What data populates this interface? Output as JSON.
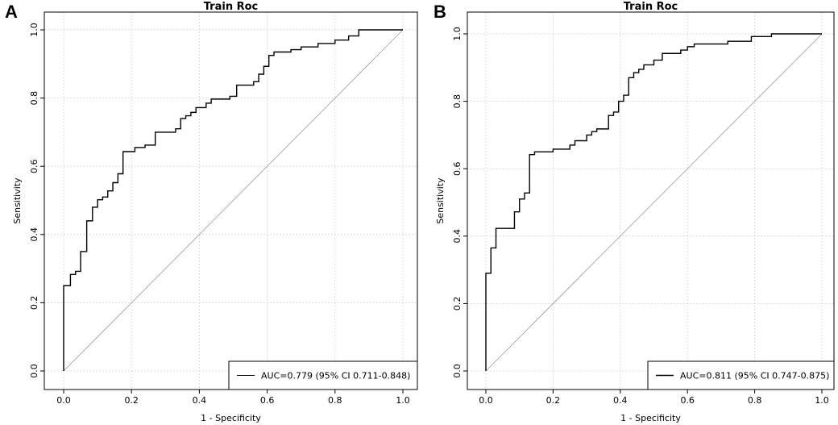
{
  "chart_data": [
    {
      "type": "line",
      "panel_label": "A",
      "title": "Train Roc",
      "xlabel": "1 - Specificity",
      "ylabel": "Sensitivity",
      "xlim": [
        0,
        1
      ],
      "ylim": [
        0,
        1
      ],
      "xticks": [
        "0.0",
        "0.2",
        "0.4",
        "0.6",
        "0.8",
        "1.0"
      ],
      "yticks": [
        "0.0",
        "0.2",
        "0.4",
        "0.6",
        "0.8",
        "1.0"
      ],
      "grid": true,
      "legend_position": "bottom-right",
      "legend": "AUC=0.779 (95% CI 0.711-0.848)",
      "reference_line": [
        [
          0,
          0
        ],
        [
          1,
          1
        ]
      ],
      "series": [
        {
          "name": "AUC=0.779 (95% CI 0.711-0.848)",
          "points": [
            [
              0,
              0
            ],
            [
              0,
              0.25
            ],
            [
              0.02,
              0.25
            ],
            [
              0.02,
              0.283
            ],
            [
              0.035,
              0.283
            ],
            [
              0.035,
              0.292
            ],
            [
              0.05,
              0.292
            ],
            [
              0.05,
              0.35
            ],
            [
              0.068,
              0.35
            ],
            [
              0.068,
              0.44
            ],
            [
              0.085,
              0.44
            ],
            [
              0.085,
              0.48
            ],
            [
              0.1,
              0.48
            ],
            [
              0.1,
              0.502
            ],
            [
              0.115,
              0.502
            ],
            [
              0.115,
              0.51
            ],
            [
              0.13,
              0.51
            ],
            [
              0.13,
              0.528
            ],
            [
              0.145,
              0.528
            ],
            [
              0.145,
              0.552
            ],
            [
              0.16,
              0.552
            ],
            [
              0.16,
              0.578
            ],
            [
              0.175,
              0.578
            ],
            [
              0.175,
              0.643
            ],
            [
              0.21,
              0.643
            ],
            [
              0.21,
              0.655
            ],
            [
              0.24,
              0.655
            ],
            [
              0.24,
              0.662
            ],
            [
              0.27,
              0.662
            ],
            [
              0.27,
              0.7
            ],
            [
              0.33,
              0.7
            ],
            [
              0.33,
              0.71
            ],
            [
              0.345,
              0.71
            ],
            [
              0.345,
              0.74
            ],
            [
              0.36,
              0.74
            ],
            [
              0.36,
              0.748
            ],
            [
              0.375,
              0.748
            ],
            [
              0.375,
              0.758
            ],
            [
              0.39,
              0.758
            ],
            [
              0.39,
              0.772
            ],
            [
              0.42,
              0.772
            ],
            [
              0.42,
              0.785
            ],
            [
              0.435,
              0.785
            ],
            [
              0.435,
              0.797
            ],
            [
              0.49,
              0.797
            ],
            [
              0.49,
              0.805
            ],
            [
              0.51,
              0.805
            ],
            [
              0.51,
              0.838
            ],
            [
              0.56,
              0.838
            ],
            [
              0.56,
              0.848
            ],
            [
              0.575,
              0.848
            ],
            [
              0.575,
              0.87
            ],
            [
              0.59,
              0.87
            ],
            [
              0.59,
              0.893
            ],
            [
              0.605,
              0.893
            ],
            [
              0.605,
              0.925
            ],
            [
              0.62,
              0.925
            ],
            [
              0.62,
              0.935
            ],
            [
              0.67,
              0.935
            ],
            [
              0.67,
              0.942
            ],
            [
              0.7,
              0.942
            ],
            [
              0.7,
              0.95
            ],
            [
              0.75,
              0.95
            ],
            [
              0.75,
              0.96
            ],
            [
              0.8,
              0.96
            ],
            [
              0.8,
              0.97
            ],
            [
              0.84,
              0.97
            ],
            [
              0.84,
              0.982
            ],
            [
              0.87,
              0.982
            ],
            [
              0.87,
              1
            ],
            [
              1,
              1
            ]
          ]
        }
      ]
    },
    {
      "type": "line",
      "panel_label": "B",
      "title": "Train Roc",
      "xlabel": "1 - Specificity",
      "ylabel": "Sensitivity",
      "xlim": [
        0,
        1
      ],
      "ylim": [
        0,
        1
      ],
      "xticks": [
        "0.0",
        "0.2",
        "0.4",
        "0.6",
        "0.8",
        "1.0"
      ],
      "yticks": [
        "0.0",
        "0.2",
        "0.4",
        "0.6",
        "0.8",
        "1.0"
      ],
      "grid": true,
      "legend_position": "bottom-right",
      "legend": "AUC=0.811 (95% CI 0.747-0.875)",
      "reference_line": [
        [
          0,
          0
        ],
        [
          1,
          1
        ]
      ],
      "series": [
        {
          "name": "AUC=0.811 (95% CI 0.747-0.875)",
          "points": [
            [
              0,
              0
            ],
            [
              0,
              0.29
            ],
            [
              0.015,
              0.29
            ],
            [
              0.015,
              0.365
            ],
            [
              0.03,
              0.365
            ],
            [
              0.03,
              0.423
            ],
            [
              0.085,
              0.423
            ],
            [
              0.085,
              0.472
            ],
            [
              0.1,
              0.472
            ],
            [
              0.1,
              0.51
            ],
            [
              0.115,
              0.51
            ],
            [
              0.115,
              0.528
            ],
            [
              0.13,
              0.528
            ],
            [
              0.13,
              0.642
            ],
            [
              0.145,
              0.642
            ],
            [
              0.145,
              0.65
            ],
            [
              0.2,
              0.65
            ],
            [
              0.2,
              0.658
            ],
            [
              0.25,
              0.658
            ],
            [
              0.25,
              0.67
            ],
            [
              0.265,
              0.67
            ],
            [
              0.265,
              0.683
            ],
            [
              0.3,
              0.683
            ],
            [
              0.3,
              0.7
            ],
            [
              0.315,
              0.7
            ],
            [
              0.315,
              0.71
            ],
            [
              0.33,
              0.71
            ],
            [
              0.33,
              0.718
            ],
            [
              0.365,
              0.718
            ],
            [
              0.365,
              0.758
            ],
            [
              0.38,
              0.758
            ],
            [
              0.38,
              0.768
            ],
            [
              0.395,
              0.768
            ],
            [
              0.395,
              0.8
            ],
            [
              0.41,
              0.8
            ],
            [
              0.41,
              0.818
            ],
            [
              0.425,
              0.818
            ],
            [
              0.425,
              0.87
            ],
            [
              0.44,
              0.87
            ],
            [
              0.44,
              0.885
            ],
            [
              0.455,
              0.885
            ],
            [
              0.455,
              0.895
            ],
            [
              0.47,
              0.895
            ],
            [
              0.47,
              0.908
            ],
            [
              0.5,
              0.908
            ],
            [
              0.5,
              0.922
            ],
            [
              0.525,
              0.922
            ],
            [
              0.525,
              0.942
            ],
            [
              0.58,
              0.942
            ],
            [
              0.58,
              0.952
            ],
            [
              0.6,
              0.952
            ],
            [
              0.6,
              0.962
            ],
            [
              0.62,
              0.962
            ],
            [
              0.62,
              0.97
            ],
            [
              0.72,
              0.97
            ],
            [
              0.72,
              0.978
            ],
            [
              0.79,
              0.978
            ],
            [
              0.79,
              0.992
            ],
            [
              0.85,
              0.992
            ],
            [
              0.85,
              1
            ],
            [
              1,
              1
            ]
          ]
        }
      ]
    }
  ]
}
